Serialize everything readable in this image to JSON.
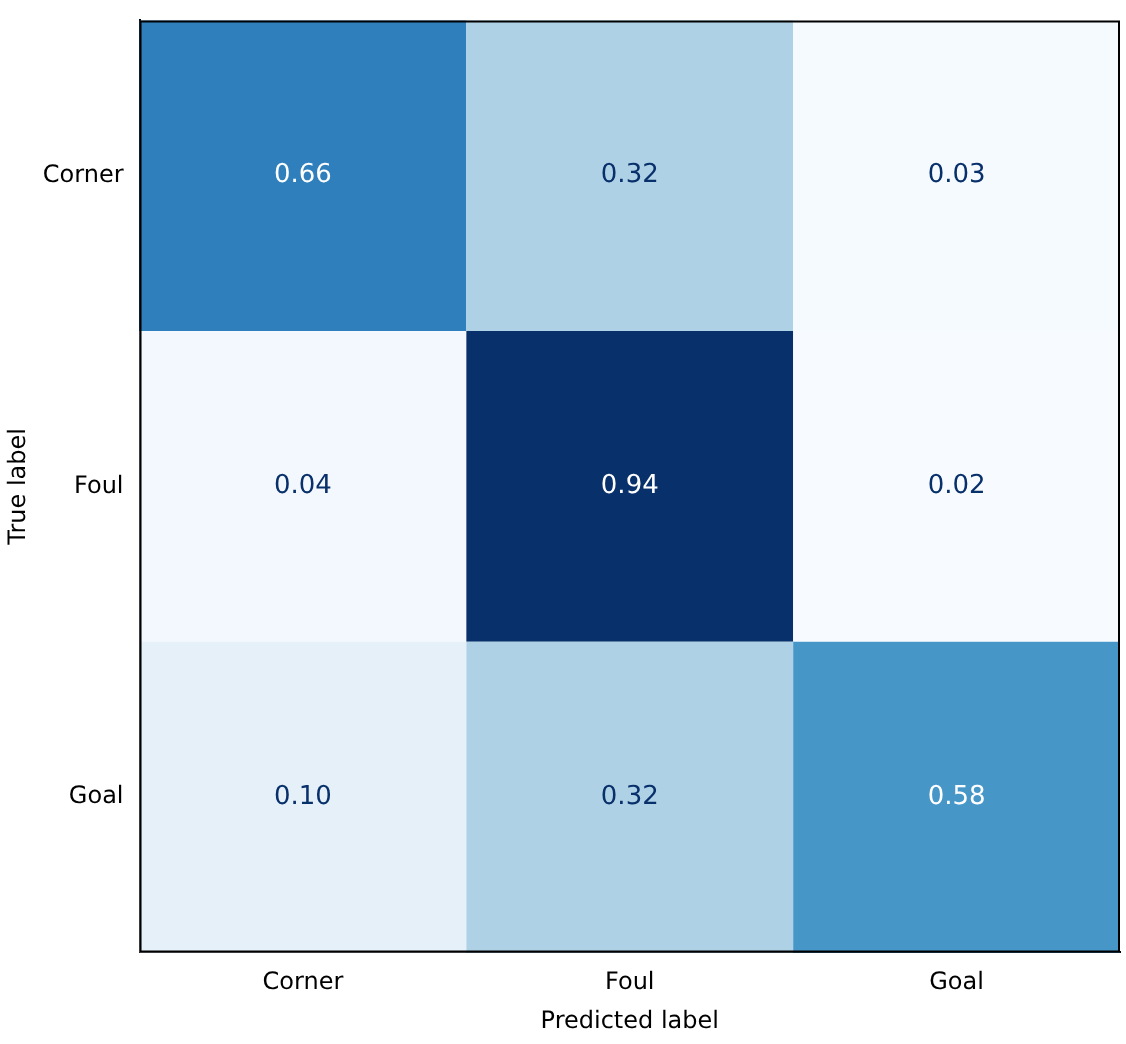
{
  "chart_data": {
    "type": "heatmap",
    "xlabel": "Predicted label",
    "ylabel": "True label",
    "categories": [
      "Corner",
      "Foul",
      "Goal"
    ],
    "y_categories": [
      "Corner",
      "Foul",
      "Goal"
    ],
    "cells": [
      [
        0.66,
        0.32,
        0.03
      ],
      [
        0.04,
        0.94,
        0.02
      ],
      [
        0.1,
        0.32,
        0.58
      ]
    ],
    "cell_labels": [
      [
        "0.66",
        "0.32",
        "0.03"
      ],
      [
        "0.04",
        "0.94",
        "0.02"
      ],
      [
        "0.10",
        "0.32",
        "0.58"
      ]
    ],
    "data_labels": true,
    "grid": false
  }
}
